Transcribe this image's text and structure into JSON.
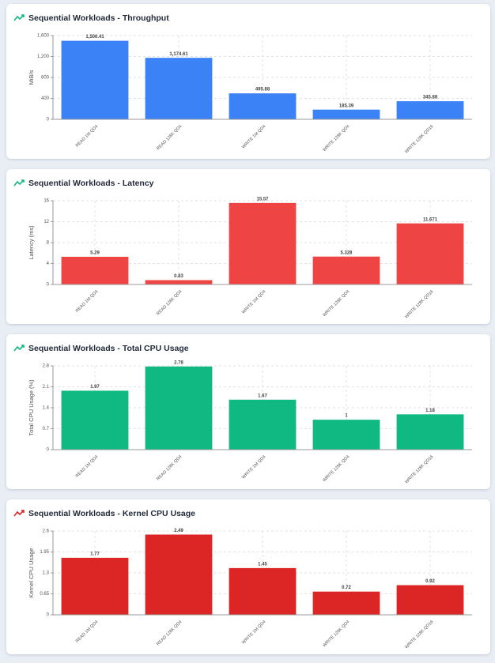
{
  "chart_data": [
    {
      "type": "bar",
      "title": "Sequential Workloads - Throughput",
      "y_label": "MiB/s",
      "categories": [
        "READ 1M QD4",
        "READ 128K QD4",
        "WRITE 1M QD4",
        "WRITE 128K QD4",
        "WRITE 128K QD16"
      ],
      "values": [
        1500.41,
        1174.61,
        495.88,
        185.39,
        345.88
      ],
      "value_labels": [
        "1,500.41",
        "1,174.61",
        "495.88",
        "185.39",
        "345.88"
      ],
      "color": "#3b82f6",
      "icon_color": "#10b981",
      "ylim": [
        0,
        1600
      ],
      "yticks": [
        0,
        400,
        800,
        {
          "value": 1200,
          "label": "1,200"
        },
        {
          "value": 1600,
          "label": "1,600"
        }
      ],
      "grid": true
    },
    {
      "type": "bar",
      "title": "Sequential Workloads - Latency",
      "y_label": "Latency (ms)",
      "categories": [
        "READ 1M QD4",
        "READ 128K QD4",
        "WRITE 1M QD4",
        "WRITE 128K QD4",
        "WRITE 128K QD16"
      ],
      "values": [
        5.29,
        0.83,
        15.57,
        5.328,
        11.671
      ],
      "color": "#ef4444",
      "icon_color": "#10b981",
      "ylim": [
        0,
        16
      ],
      "yticks": [
        0,
        4,
        8,
        12,
        16
      ],
      "grid": true
    },
    {
      "type": "bar",
      "title": "Sequential Workloads - Total CPU Usage",
      "y_label": "Total CPU Usage (%)",
      "categories": [
        "READ 1M QD4",
        "READ 128K QD4",
        "WRITE 1M QD4",
        "WRITE 128K QD4",
        "WRITE 128K QD16"
      ],
      "values": [
        1.97,
        2.78,
        1.67,
        1,
        1.18
      ],
      "color": "#10b981",
      "icon_color": "#10b981",
      "ylim": [
        0,
        2.8
      ],
      "yticks": [
        0,
        0.7,
        1.4,
        2.1,
        2.8
      ],
      "grid": true
    },
    {
      "type": "bar",
      "title": "Sequential Workloads - Kernel CPU Usage",
      "y_label": "Kernel CPU Usage",
      "categories": [
        "READ 1M QD4",
        "READ 128K QD4",
        "WRITE 1M QD4",
        "WRITE 128K QD4",
        "WRITE 128K QD16"
      ],
      "values": [
        1.77,
        2.49,
        1.45,
        0.72,
        0.92
      ],
      "color": "#dc2626",
      "icon_color": "#dc2626",
      "ylim": [
        0,
        2.6
      ],
      "yticks": [
        0,
        0.65,
        1.3,
        1.95,
        2.6
      ],
      "grid": true
    }
  ]
}
